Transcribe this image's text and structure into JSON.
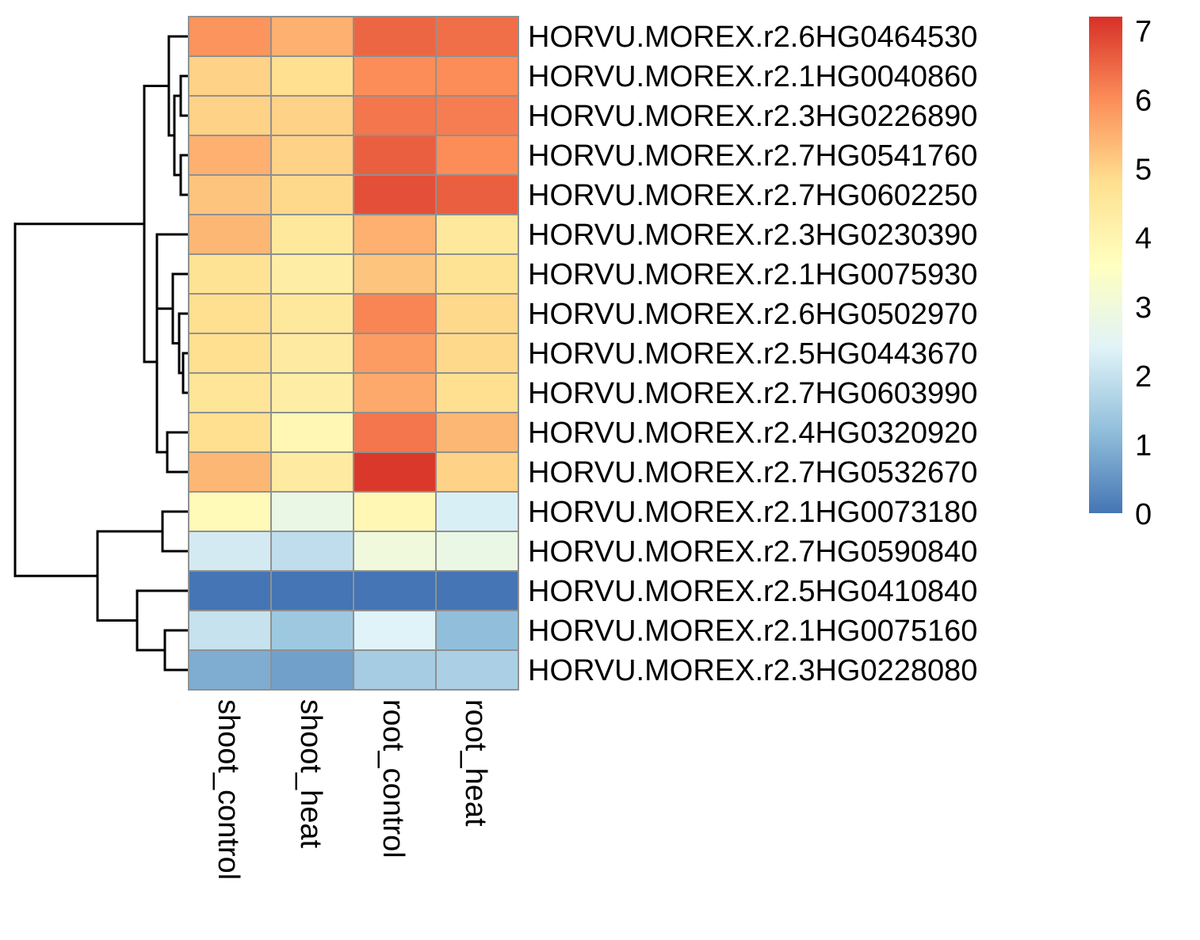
{
  "chart_data": {
    "type": "heatmap",
    "title": "",
    "columns": [
      "shoot_control",
      "shoot_heat",
      "root_control",
      "root_heat"
    ],
    "rows": [
      "HORVU.MOREX.r2.6HG0464530",
      "HORVU.MOREX.r2.1HG0040860",
      "HORVU.MOREX.r2.3HG0226890",
      "HORVU.MOREX.r2.7HG0541760",
      "HORVU.MOREX.r2.7HG0602250",
      "HORVU.MOREX.r2.3HG0230390",
      "HORVU.MOREX.r2.1HG0075930",
      "HORVU.MOREX.r2.6HG0502970",
      "HORVU.MOREX.r2.5HG0443670",
      "HORVU.MOREX.r2.7HG0603990",
      "HORVU.MOREX.r2.4HG0320920",
      "HORVU.MOREX.r2.7HG0532670",
      "HORVU.MOREX.r2.1HG0073180",
      "HORVU.MOREX.r2.7HG0590840",
      "HORVU.MOREX.r2.5HG0410840",
      "HORVU.MOREX.r2.1HG0075160",
      "HORVU.MOREX.r2.3HG0228080"
    ],
    "values": [
      [
        5.9,
        5.5,
        6.5,
        6.4
      ],
      [
        5.0,
        4.8,
        6.0,
        6.0
      ],
      [
        5.0,
        5.0,
        6.3,
        6.2
      ],
      [
        5.5,
        5.0,
        6.6,
        6.0
      ],
      [
        5.2,
        4.9,
        6.8,
        6.6
      ],
      [
        5.4,
        4.5,
        5.5,
        4.5
      ],
      [
        4.7,
        4.3,
        5.2,
        4.7
      ],
      [
        4.8,
        4.5,
        6.1,
        4.9
      ],
      [
        4.8,
        4.4,
        5.8,
        4.9
      ],
      [
        4.6,
        4.3,
        5.6,
        4.8
      ],
      [
        4.8,
        3.9,
        6.3,
        5.4
      ],
      [
        5.4,
        4.4,
        7.1,
        5.0
      ],
      [
        3.8,
        2.8,
        3.9,
        2.3
      ],
      [
        2.2,
        1.9,
        3.0,
        2.8
      ],
      [
        0.0,
        0.0,
        0.0,
        0.0
      ],
      [
        2.0,
        1.4,
        2.4,
        1.2
      ],
      [
        0.9,
        0.7,
        1.5,
        1.6
      ]
    ],
    "colorbar": {
      "min": 0,
      "max": 7.2,
      "ticks": [
        "0",
        "1",
        "2",
        "3",
        "4",
        "5",
        "6",
        "7"
      ],
      "palette": [
        "#4575B4",
        "#91BFDB",
        "#E0F3F8",
        "#FFFFBF",
        "#FEE090",
        "#FC8D59",
        "#D73027"
      ]
    },
    "cell_border_color": "#909090",
    "row_dendrogram": true,
    "legend": "right"
  }
}
